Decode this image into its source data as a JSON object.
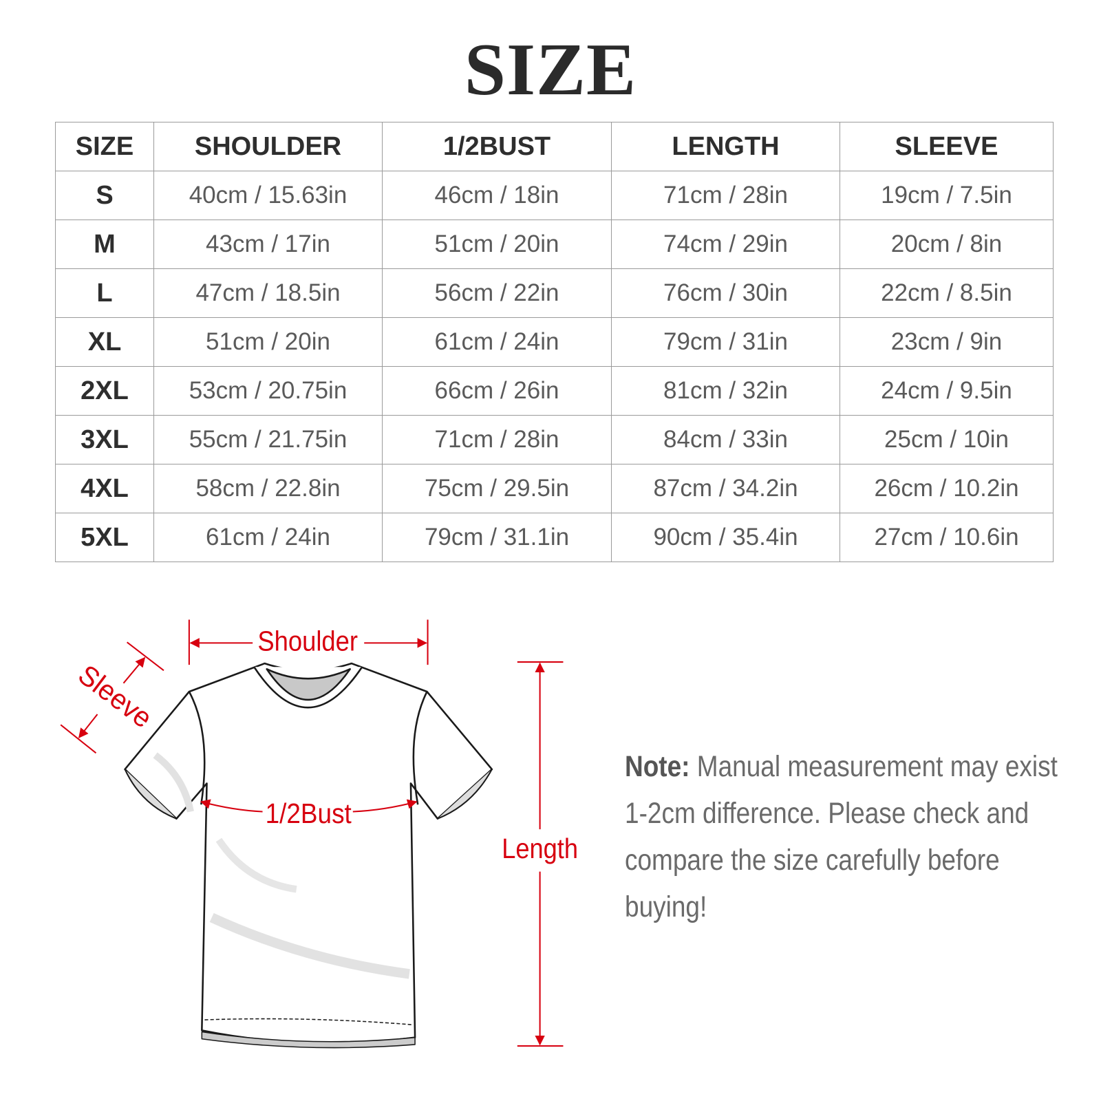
{
  "title": "SIZE",
  "table": {
    "headers": [
      "SIZE",
      "SHOULDER",
      "1/2BUST",
      "LENGTH",
      "SLEEVE"
    ],
    "rows": [
      [
        "S",
        "40cm / 15.63in",
        "46cm / 18in",
        "71cm / 28in",
        "19cm / 7.5in"
      ],
      [
        "M",
        "43cm / 17in",
        "51cm / 20in",
        "74cm / 29in",
        "20cm / 8in"
      ],
      [
        "L",
        "47cm / 18.5in",
        "56cm / 22in",
        "76cm / 30in",
        "22cm / 8.5in"
      ],
      [
        "XL",
        "51cm / 20in",
        "61cm / 24in",
        "79cm / 31in",
        "23cm / 9in"
      ],
      [
        "2XL",
        "53cm / 20.75in",
        "66cm / 26in",
        "81cm / 32in",
        "24cm / 9.5in"
      ],
      [
        "3XL",
        "55cm / 21.75in",
        "71cm / 28in",
        "84cm / 33in",
        "25cm / 10in"
      ],
      [
        "4XL",
        "58cm / 22.8in",
        "75cm / 29.5in",
        "87cm / 34.2in",
        "26cm / 10.2in"
      ],
      [
        "5XL",
        "61cm / 24in",
        "79cm / 31.1in",
        "90cm / 35.4in",
        "27cm / 10.6in"
      ]
    ]
  },
  "diagram": {
    "shoulder": "Shoulder",
    "sleeve": "Sleeve",
    "bust": "1/2Bust",
    "length": "Length",
    "accent_color": "#d7000f"
  },
  "note": {
    "label": "Note:",
    "text": "Manual measurement may exist 1-2cm difference. Please check and compare the size carefully before buying!"
  }
}
